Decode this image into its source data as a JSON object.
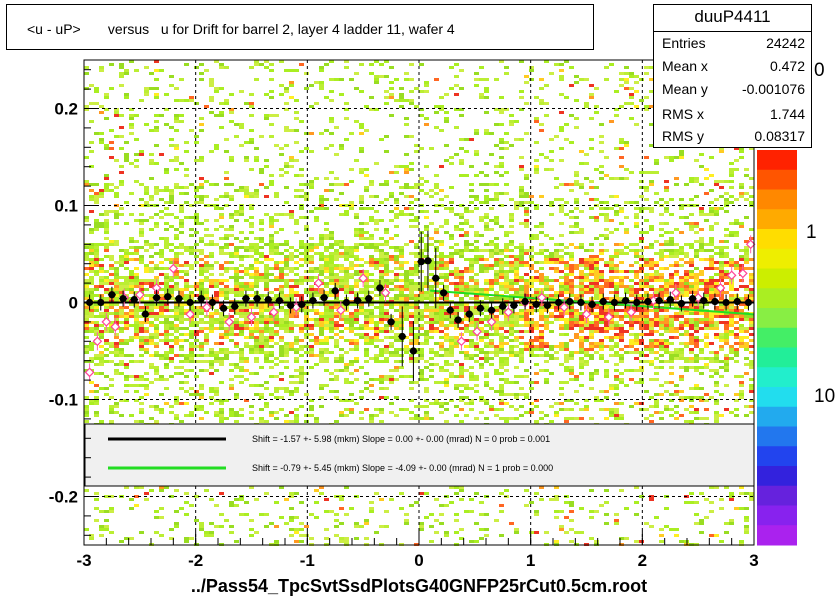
{
  "chart_data": {
    "type": "scatter",
    "title": "<u - uP>       versus   u for Drift for barrel 2, layer 4 ladder 11, wafer 4",
    "xlabel": "../Pass54_TpcSvtSsdPlotsG40GNFP25rCut0.5cm.root",
    "ylabel": "",
    "xlim": [
      -3,
      3
    ],
    "ylim": [
      -0.25,
      0.25
    ],
    "x_ticks": [
      "-3",
      "-2",
      "-1",
      "0",
      "1",
      "2",
      "3"
    ],
    "y_ticks": [
      "-0.2",
      "-0.1",
      "0",
      "0.1",
      "0.2"
    ],
    "colorbar_labels": [
      "1",
      "10"
    ],
    "colorbar_partial_label": "0",
    "grid": true,
    "stats": {
      "name": "duuP4411",
      "rows": [
        {
          "label": "Entries",
          "value": "24242"
        },
        {
          "label": "Mean x",
          "value": "0.472"
        },
        {
          "label": "Mean y",
          "value": "-0.001076"
        },
        {
          "label": "RMS x",
          "value": "1.744"
        },
        {
          "label": "RMS y",
          "value": "0.08317"
        }
      ]
    },
    "legend": [
      {
        "color": "#000000",
        "text": "Shift =    -1.57 +- 5.98 (mkm) Slope =     0.00 +- 0.00 (mrad)  N = 0 prob = 0.001"
      },
      {
        "color": "#22dd22",
        "text": "Shift =    -0.79 +- 5.45 (mkm) Slope =    -4.09 +- 0.00 (mrad)  N = 1 prob = 0.000"
      }
    ],
    "series": [
      {
        "marker": "black-filled-circle",
        "x": [
          -2.95,
          -2.85,
          -2.75,
          -2.65,
          -2.55,
          -2.45,
          -2.35,
          -2.25,
          -2.15,
          -2.05,
          -1.95,
          -1.85,
          -1.75,
          -1.65,
          -1.55,
          -1.45,
          -1.35,
          -1.25,
          -1.15,
          -1.05,
          -0.95,
          -0.85,
          -0.75,
          -0.65,
          -0.55,
          -0.45,
          -0.35,
          -0.25,
          -0.15,
          -0.05,
          0.02,
          0.08,
          0.15,
          0.22,
          0.28,
          0.35,
          0.45,
          0.55,
          0.65,
          0.75,
          0.85,
          0.95,
          1.05,
          1.15,
          1.25,
          1.35,
          1.45,
          1.55,
          1.65,
          1.75,
          1.85,
          1.95,
          2.05,
          2.15,
          2.25,
          2.35,
          2.45,
          2.55,
          2.65,
          2.75,
          2.85,
          2.95
        ],
        "y": [
          0.0,
          0.0,
          0.008,
          0.004,
          0.003,
          -0.012,
          0.005,
          0.006,
          0.004,
          0.0,
          0.004,
          0.0,
          -0.006,
          -0.004,
          0.004,
          0.004,
          0.003,
          0.002,
          -0.003,
          -0.002,
          0.002,
          0.005,
          0.012,
          0.0,
          0.002,
          0.004,
          0.015,
          -0.02,
          -0.035,
          -0.05,
          0.042,
          0.043,
          0.025,
          0.01,
          -0.008,
          -0.018,
          -0.012,
          -0.006,
          -0.008,
          -0.004,
          -0.003,
          0.001,
          -0.002,
          -0.003,
          0.0,
          0.001,
          0.0,
          -0.002,
          0.001,
          0.0,
          0.002,
          0.0,
          0.001,
          0.002,
          0.003,
          -0.001,
          0.004,
          0.002,
          0.001,
          0.0,
          0.001,
          0.0
        ]
      },
      {
        "marker": "pink-open-diamond",
        "x": [
          -2.95,
          -2.88,
          -2.8,
          -2.72,
          -2.64,
          -2.5,
          -2.35,
          -2.2,
          -2.05,
          -1.9,
          -1.7,
          -1.5,
          -1.3,
          -1.1,
          -0.9,
          -0.7,
          -0.5,
          -0.3,
          0.38,
          0.52,
          0.65,
          0.8,
          0.95,
          1.1,
          1.3,
          1.5,
          1.7,
          1.9,
          2.1,
          2.3,
          2.5,
          2.7,
          2.8,
          2.9,
          2.97
        ],
        "y": [
          -0.072,
          -0.04,
          -0.02,
          -0.025,
          0.005,
          0.008,
          0.015,
          0.035,
          -0.012,
          -0.005,
          -0.02,
          -0.015,
          -0.01,
          -0.005,
          0.02,
          -0.008,
          0.025,
          0.01,
          -0.04,
          -0.03,
          -0.02,
          -0.01,
          0.0,
          0.005,
          -0.005,
          -0.012,
          -0.015,
          -0.01,
          0.002,
          0.01,
          0.005,
          0.015,
          0.028,
          0.03,
          0.06
        ]
      }
    ],
    "fit_lines": [
      {
        "color": "#000000",
        "y0": 0.0,
        "slope": 0.0
      },
      {
        "color": "#22dd22",
        "y0": 0.0,
        "slope": -0.00409
      }
    ]
  }
}
